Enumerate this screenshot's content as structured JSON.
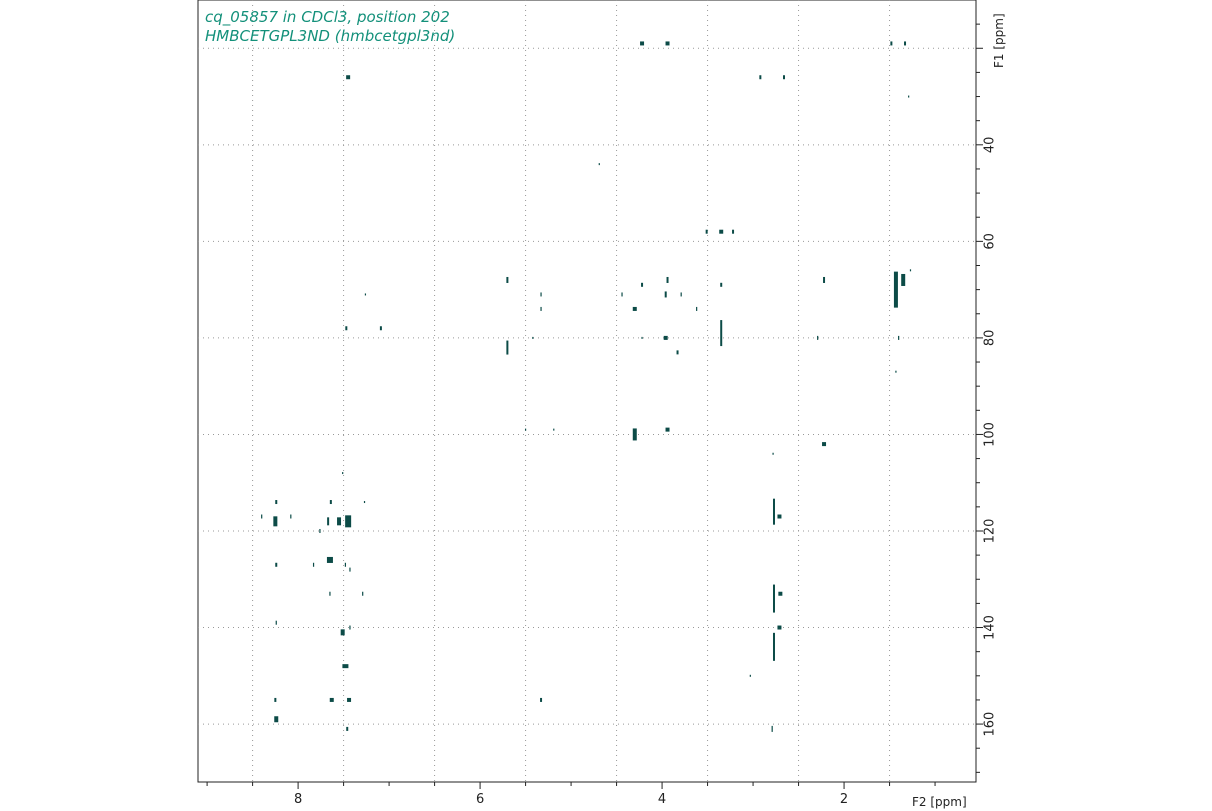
{
  "colors": {
    "contour": "#0c4b47",
    "title": "#13907a",
    "grid": "#999999",
    "axis": "#222222"
  },
  "chart_data": {
    "type": "scatter",
    "title_lines": [
      "cq_05857 in CDCl3, position 202",
      "HMBCETGPL3ND (hmbcetgpl3nd)"
    ],
    "xlabel": "F2 [ppm]",
    "ylabel": "F1 [ppm]",
    "xlim": [
      9.1,
      0.55
    ],
    "ylim": [
      10,
      172
    ],
    "x_ticks": [
      "8",
      "6",
      "4",
      "2"
    ],
    "x_tick_values": [
      8,
      6,
      4,
      2
    ],
    "x_grid": [
      8.5,
      7.5,
      6.5,
      5.5,
      4.5,
      3.5,
      2.5,
      1.5
    ],
    "y_ticks": [
      "40",
      "60",
      "80",
      "100",
      "120",
      "140",
      "160"
    ],
    "y_tick_values": [
      40,
      60,
      80,
      100,
      120,
      140,
      160
    ],
    "y_grid": [
      20,
      40,
      60,
      80,
      100,
      120,
      140,
      160
    ],
    "peaks": [
      [
        4.22,
        19,
        2,
        2
      ],
      [
        3.94,
        19,
        2,
        2
      ],
      [
        1.48,
        19,
        1,
        2
      ],
      [
        1.33,
        19,
        1,
        2
      ],
      [
        7.45,
        26,
        2,
        2
      ],
      [
        2.92,
        26,
        1,
        2
      ],
      [
        2.66,
        26,
        1,
        2
      ],
      [
        1.29,
        30,
        0.5,
        1
      ],
      [
        4.69,
        44,
        0.5,
        1
      ],
      [
        3.51,
        58,
        1,
        2
      ],
      [
        3.35,
        58,
        2,
        2
      ],
      [
        3.22,
        58,
        1,
        2
      ],
      [
        5.7,
        68,
        1,
        3
      ],
      [
        4.22,
        69,
        1,
        2
      ],
      [
        3.94,
        68,
        1,
        3
      ],
      [
        3.35,
        69,
        1,
        2
      ],
      [
        2.22,
        68,
        1,
        3
      ],
      [
        1.43,
        70,
        2,
        18
      ],
      [
        1.35,
        68,
        2,
        6
      ],
      [
        1.27,
        66,
        0.5,
        1
      ],
      [
        5.33,
        71,
        0.5,
        2
      ],
      [
        4.44,
        71,
        0.5,
        2
      ],
      [
        4.3,
        74,
        2,
        2
      ],
      [
        3.96,
        71,
        1,
        3
      ],
      [
        3.79,
        71,
        0.5,
        2
      ],
      [
        3.62,
        74,
        0.5,
        2
      ],
      [
        5.33,
        74,
        0.5,
        2
      ],
      [
        7.47,
        78,
        1,
        2
      ],
      [
        7.09,
        78,
        1,
        2
      ],
      [
        7.26,
        71,
        0.5,
        1
      ],
      [
        5.7,
        82,
        1,
        7
      ],
      [
        5.42,
        80,
        0.5,
        1
      ],
      [
        3.35,
        79,
        1,
        13
      ],
      [
        4.22,
        80,
        0.5,
        1
      ],
      [
        3.96,
        80,
        2,
        2
      ],
      [
        3.83,
        83,
        1,
        2
      ],
      [
        2.29,
        80,
        0.5,
        2
      ],
      [
        1.4,
        80,
        0.5,
        2
      ],
      [
        1.43,
        87,
        0.5,
        1
      ],
      [
        4.3,
        100,
        2,
        6
      ],
      [
        3.94,
        99,
        2,
        2
      ],
      [
        5.5,
        99,
        0.5,
        1
      ],
      [
        5.19,
        99,
        0.5,
        1
      ],
      [
        2.22,
        102,
        2,
        2
      ],
      [
        2.78,
        104,
        0.5,
        1
      ],
      [
        7.51,
        108,
        0.5,
        1
      ],
      [
        8.24,
        114,
        1,
        2
      ],
      [
        7.64,
        114,
        1,
        2
      ],
      [
        7.27,
        114,
        0.5,
        1
      ],
      [
        8.25,
        118,
        2,
        5
      ],
      [
        8.4,
        117,
        0.5,
        2
      ],
      [
        8.08,
        117,
        0.5,
        2
      ],
      [
        7.55,
        118,
        2,
        4
      ],
      [
        7.45,
        118,
        3,
        6
      ],
      [
        7.67,
        118,
        1,
        4
      ],
      [
        7.76,
        120,
        0.5,
        2
      ],
      [
        2.77,
        116,
        1,
        13
      ],
      [
        2.71,
        117,
        2,
        2
      ],
      [
        8.24,
        127,
        1,
        2
      ],
      [
        7.65,
        126,
        3,
        3
      ],
      [
        7.83,
        127,
        0.5,
        2
      ],
      [
        7.48,
        127,
        0.5,
        2
      ],
      [
        7.43,
        128,
        0.5,
        2
      ],
      [
        7.65,
        133,
        0.5,
        2
      ],
      [
        7.29,
        133,
        0.5,
        2
      ],
      [
        2.77,
        134,
        1,
        14
      ],
      [
        2.7,
        133,
        2,
        2
      ],
      [
        2.77,
        144,
        1,
        14
      ],
      [
        2.71,
        140,
        2,
        2
      ],
      [
        8.24,
        139,
        0.5,
        2
      ],
      [
        7.51,
        141,
        2,
        3
      ],
      [
        7.43,
        140,
        0.5,
        2
      ],
      [
        7.48,
        148,
        3,
        2
      ],
      [
        3.03,
        150,
        0.5,
        1
      ],
      [
        8.25,
        155,
        1,
        2
      ],
      [
        7.63,
        155,
        2,
        2
      ],
      [
        7.44,
        155,
        2,
        2
      ],
      [
        5.33,
        155,
        1,
        2
      ],
      [
        8.24,
        159,
        2,
        3
      ],
      [
        7.46,
        161,
        1,
        2
      ],
      [
        2.79,
        161,
        0.5,
        3
      ]
    ]
  }
}
